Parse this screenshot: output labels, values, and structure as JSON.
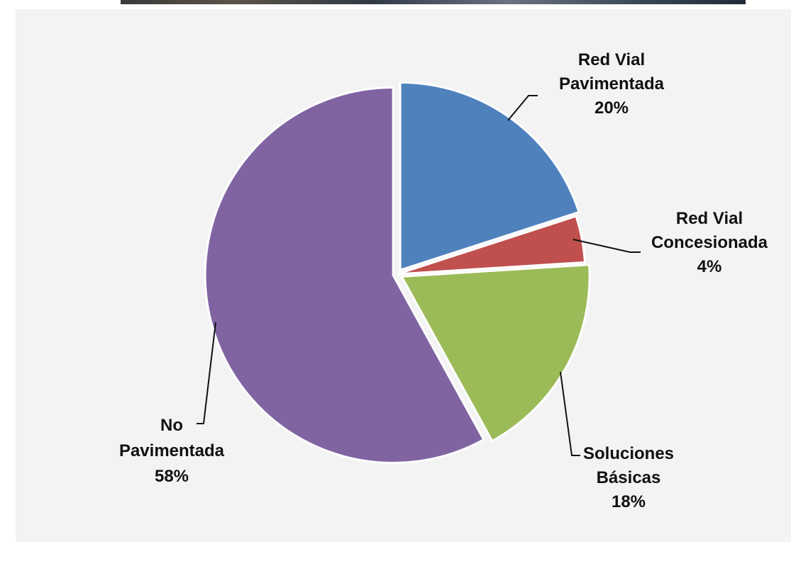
{
  "chart_data": {
    "type": "pie",
    "title": "",
    "slices": [
      {
        "name": "Red Vial Pavimentada",
        "label_lines": [
          "Red Vial",
          "Pavimentada"
        ],
        "percent_label": "20%",
        "value": 20,
        "color": "#4f81bd",
        "exploded": true
      },
      {
        "name": "Red Vial Concesionada",
        "label_lines": [
          "Red Vial",
          "Concesionada"
        ],
        "percent_label": "4%",
        "value": 4,
        "color": "#c0504d",
        "exploded": false
      },
      {
        "name": "Soluciones Básicas",
        "label_lines": [
          "Soluciones",
          "Básicas"
        ],
        "percent_label": "18%",
        "value": 18,
        "color": "#9bbb59",
        "exploded": true
      },
      {
        "name": "No Pavimentada",
        "label_lines": [
          "No",
          "Pavimentada"
        ],
        "percent_label": "58%",
        "value": 58,
        "color": "#8064a2",
        "exploded": true
      }
    ],
    "legend": "none",
    "start_angle": "12 o'clock",
    "direction": "clockwise"
  },
  "colors": {
    "panel_background": "#f3f3f3",
    "slice_border": "#ffffff"
  }
}
